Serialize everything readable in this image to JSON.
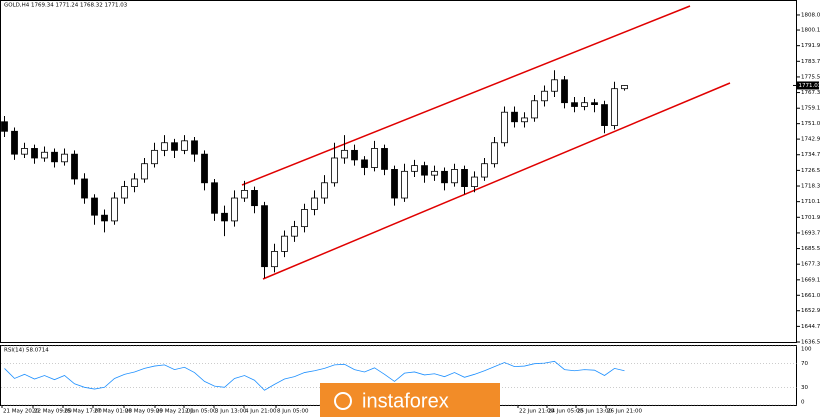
{
  "chart_data": {
    "type": "candlestick",
    "title": "GOLD,H4  1769.34 1771.24 1768.32 1771.03",
    "open": [
      1752,
      1747,
      1735,
      1738,
      1733,
      1736,
      1731,
      1735,
      1722,
      1712,
      1703,
      1700,
      1712,
      1718,
      1722,
      1730,
      1737,
      1741,
      1737,
      1742,
      1735,
      1720,
      1704,
      1700,
      1712,
      1716,
      1708,
      1676,
      1684,
      1692,
      1697,
      1706,
      1712,
      1720,
      1733,
      1737,
      1732,
      1728,
      1738,
      1727,
      1712,
      1726,
      1729,
      1724,
      1726,
      1720,
      1727,
      1718,
      1723,
      1730,
      1741,
      1757,
      1752,
      1754,
      1763,
      1768,
      1774,
      1762,
      1760,
      1762,
      1761,
      1750,
      1769.34
    ],
    "high": [
      1755,
      1749,
      1741,
      1740,
      1739,
      1738,
      1738,
      1737,
      1725,
      1714,
      1706,
      1715,
      1721,
      1725,
      1733,
      1741,
      1745,
      1743,
      1745,
      1744,
      1737,
      1722,
      1708,
      1716,
      1721,
      1718,
      1710,
      1688,
      1695,
      1700,
      1709,
      1716,
      1724,
      1741,
      1745,
      1740,
      1734,
      1742,
      1740,
      1729,
      1730,
      1732,
      1731,
      1729,
      1728,
      1730,
      1729,
      1726,
      1733,
      1744,
      1760,
      1760,
      1757,
      1766,
      1771,
      1779,
      1776,
      1765,
      1765,
      1764,
      1763,
      1773,
      1771.24
    ],
    "low": [
      1744,
      1732,
      1733,
      1730,
      1731,
      1728,
      1729,
      1719,
      1709,
      1698,
      1694,
      1698,
      1709,
      1715,
      1720,
      1728,
      1734,
      1733,
      1735,
      1731,
      1716,
      1700,
      1692,
      1697,
      1710,
      1704,
      1670,
      1673,
      1681,
      1689,
      1694,
      1703,
      1709,
      1718,
      1730,
      1729,
      1724,
      1726,
      1724,
      1708,
      1710,
      1723,
      1720,
      1721,
      1716,
      1718,
      1714,
      1715,
      1721,
      1728,
      1739,
      1749,
      1749,
      1752,
      1760,
      1765,
      1759,
      1757,
      1758,
      1757,
      1746,
      1748,
      1768.32
    ],
    "close": [
      1747,
      1735,
      1738,
      1733,
      1736,
      1731,
      1735,
      1722,
      1712,
      1703,
      1700,
      1712,
      1718,
      1722,
      1730,
      1737,
      1741,
      1737,
      1742,
      1735,
      1720,
      1704,
      1700,
      1712,
      1716,
      1708,
      1676,
      1684,
      1692,
      1697,
      1706,
      1712,
      1720,
      1733,
      1737,
      1732,
      1728,
      1738,
      1727,
      1712,
      1726,
      1729,
      1724,
      1726,
      1720,
      1727,
      1718,
      1723,
      1730,
      1741,
      1757,
      1752,
      1754,
      1763,
      1768,
      1774,
      1762,
      1760,
      1762,
      1761,
      1750,
      1769.34,
      1771.03
    ],
    "ylim": [
      1636.5,
      1814.8
    ],
    "yticks": [
      {
        "value": 1808,
        "label": "1808.00"
      },
      {
        "value": 1800.1,
        "label": "1800.10"
      },
      {
        "value": 1791.9,
        "label": "1791.90"
      },
      {
        "value": 1783.7,
        "label": "1783.70"
      },
      {
        "value": 1775.5,
        "label": "1775.50"
      },
      {
        "value": 1767.3,
        "label": "1767.30"
      },
      {
        "value": 1759.1,
        "label": "1759.10"
      },
      {
        "value": 1751,
        "label": "1751.00"
      },
      {
        "value": 1742.9,
        "label": "1742.90"
      },
      {
        "value": 1734.7,
        "label": "1734.70"
      },
      {
        "value": 1726.5,
        "label": "1726.50"
      },
      {
        "value": 1718.3,
        "label": "1718.30"
      },
      {
        "value": 1710.1,
        "label": "1710.10"
      },
      {
        "value": 1701.9,
        "label": "1701.90"
      },
      {
        "value": 1693.7,
        "label": "1693.70"
      },
      {
        "value": 1685.5,
        "label": "1685.50"
      },
      {
        "value": 1677.3,
        "label": "1677.30"
      },
      {
        "value": 1669.1,
        "label": "1669.10"
      },
      {
        "value": 1661,
        "label": "1661.00"
      },
      {
        "value": 1652.9,
        "label": "1652.90"
      },
      {
        "value": 1644.7,
        "label": "1644.70"
      },
      {
        "value": 1636.5,
        "label": "1636.50"
      }
    ],
    "current_price": 1771.03,
    "x_labels": [
      "21 May 2020",
      "22 May 09:00",
      "25 May 17:00",
      "27 May 01:00",
      "28 May 09:00",
      "29 May 21:00",
      "2 Jun 05:00",
      "3 Jun 13:00",
      "4 Jun 21:00",
      "8 Jun 05:00",
      "22 Jun 21:00",
      "24 Jun 05:00",
      "25 Jun 13:00",
      "26 Jun 21:00"
    ],
    "indicator": {
      "type": "line",
      "title": "RSI(14) 58.0714",
      "color": "#1e90ff",
      "values": [
        62,
        45,
        52,
        44,
        50,
        43,
        50,
        36,
        30,
        27,
        30,
        45,
        52,
        56,
        62,
        66,
        68,
        60,
        64,
        55,
        40,
        32,
        30,
        45,
        50,
        42,
        25,
        35,
        44,
        48,
        55,
        58,
        62,
        68,
        69,
        60,
        56,
        63,
        52,
        40,
        54,
        56,
        51,
        53,
        48,
        55,
        47,
        52,
        58,
        65,
        72,
        65,
        66,
        70,
        71,
        74,
        60,
        58,
        60,
        59,
        50,
        62,
        58.07
      ],
      "ylim": [
        0,
        100
      ],
      "yticks": [
        100,
        70,
        30,
        0
      ]
    },
    "watermark": "instaforex"
  }
}
